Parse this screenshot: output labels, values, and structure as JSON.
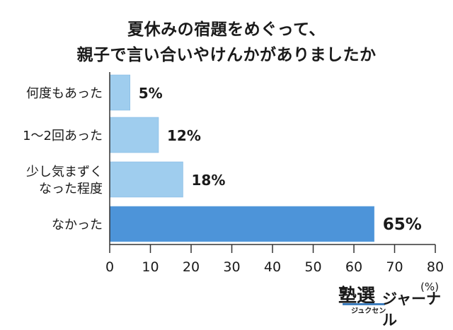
{
  "chart_data": {
    "type": "bar",
    "orientation": "horizontal",
    "title_lines": [
      "夏休みの宿題をめぐって、",
      "親子で言い合いやけんかがありましたか"
    ],
    "categories": [
      [
        "何度もあった"
      ],
      [
        "1〜2回あった"
      ],
      [
        "少し気まずく",
        "なった程度"
      ],
      [
        "なかった"
      ]
    ],
    "values": [
      5,
      12,
      18,
      65
    ],
    "value_labels": [
      "5%",
      "12%",
      "18%",
      "65%"
    ],
    "unit_label": "(%)",
    "xlim": [
      0,
      80
    ],
    "ticks": [
      0,
      10,
      20,
      30,
      40,
      50,
      60,
      70,
      80
    ],
    "grid": false,
    "colors": [
      "#9fcdee",
      "#9fcdee",
      "#9fcdee",
      "#4d94d9"
    ],
    "axis_color": "#333333"
  },
  "logo": {
    "main": "塾選",
    "sub": "ジュクセン",
    "journal": "ジャーナル"
  }
}
